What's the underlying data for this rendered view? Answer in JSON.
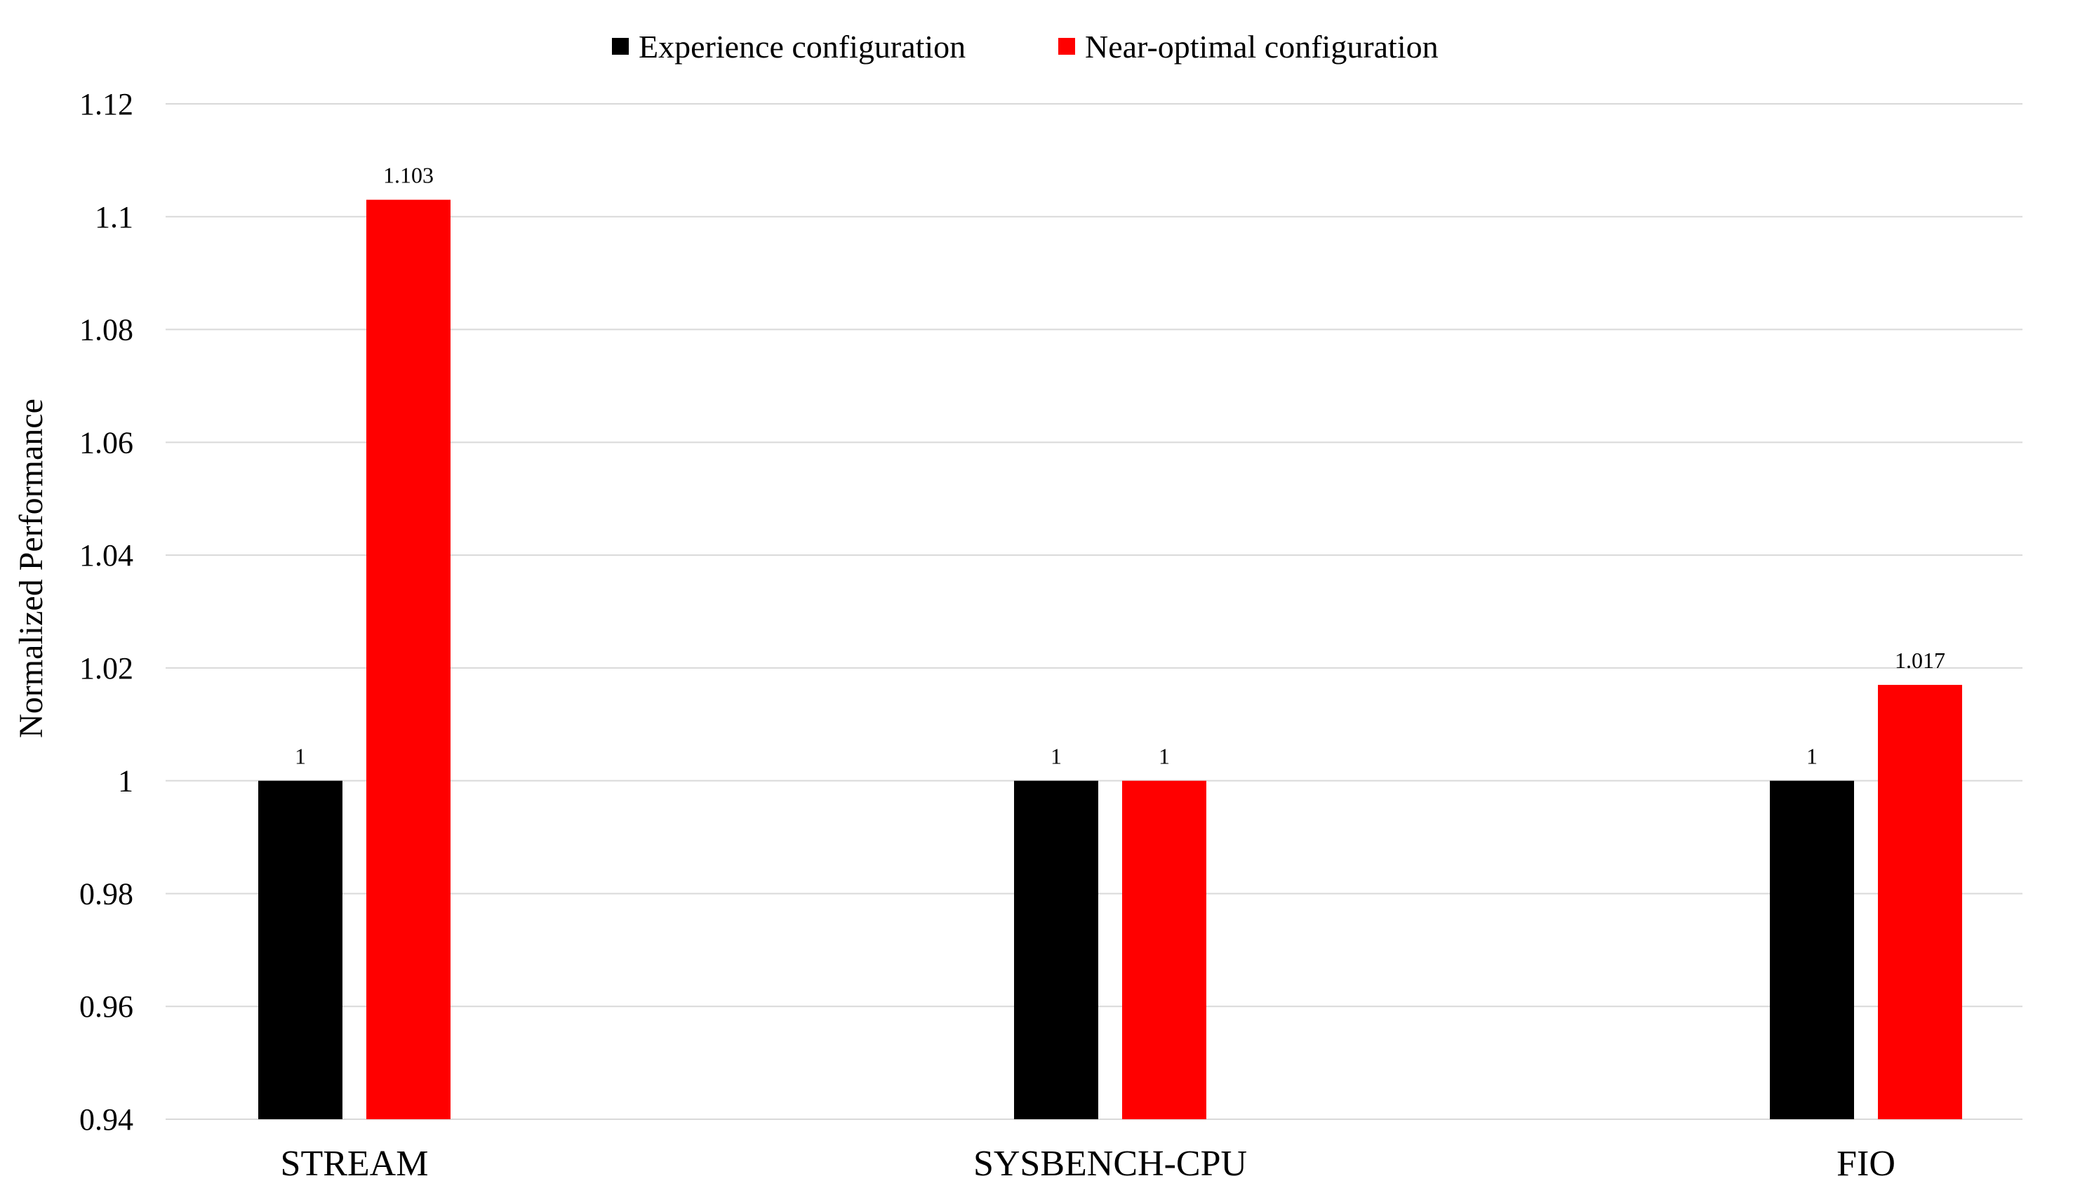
{
  "chart_data": {
    "type": "bar",
    "title": "",
    "xlabel": "",
    "ylabel": "Normalized Performance",
    "categories": [
      "STREAM",
      "SYSBENCH-CPU",
      "FIO"
    ],
    "series": [
      {
        "name": "Experience configuration",
        "color": "#000000",
        "values": [
          1,
          1,
          1
        ],
        "labels": [
          "1",
          "1",
          "1"
        ]
      },
      {
        "name": "Near-optimal configuration",
        "color": "#ff0000",
        "values": [
          1.103,
          1,
          1.017
        ],
        "labels": [
          "1.103",
          "1",
          "1.017"
        ]
      }
    ],
    "ylim": [
      0.94,
      1.12
    ],
    "yticks": [
      0.94,
      0.96,
      0.98,
      1,
      1.02,
      1.04,
      1.06,
      1.08,
      1.1,
      1.12
    ],
    "ytick_labels": [
      "0.94",
      "0.96",
      "0.98",
      "1",
      "1.02",
      "1.04",
      "1.06",
      "1.08",
      "1.1",
      "1.12"
    ],
    "grid": true,
    "legend_position": "top-center"
  }
}
